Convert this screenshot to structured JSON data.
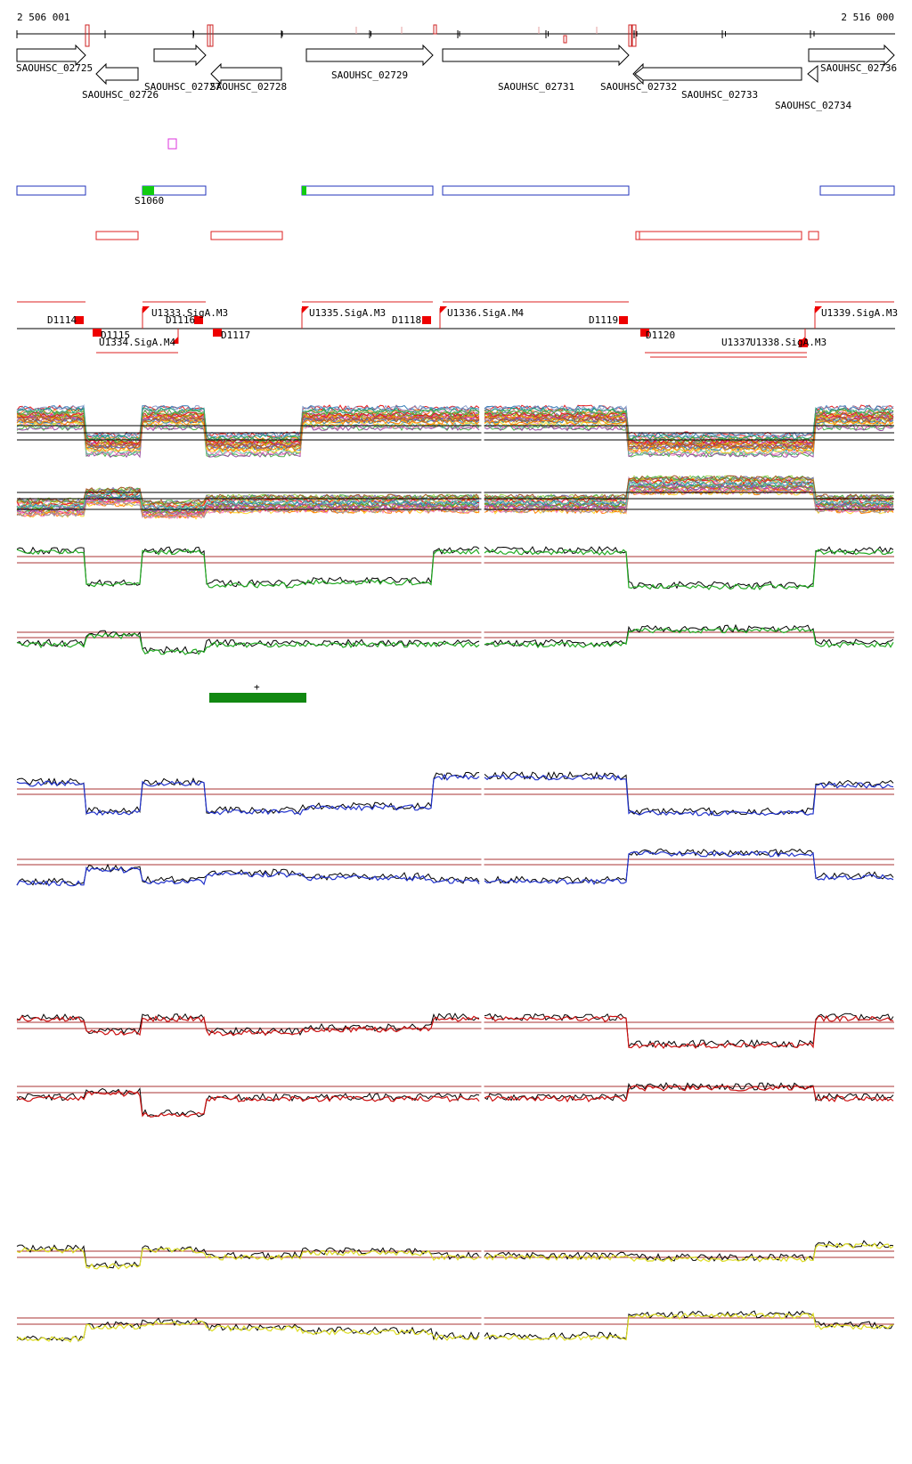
{
  "coords": {
    "start": "2 506 001",
    "end": "2 516 000"
  },
  "genes": [
    {
      "name": "SAOUHSC_02725",
      "strand": "+"
    },
    {
      "name": "SAOUHSC_02726",
      "strand": "-"
    },
    {
      "name": "SAOUHSC_02727",
      "strand": "+"
    },
    {
      "name": "SAOUHSC_02728",
      "strand": "-"
    },
    {
      "name": "SAOUHSC_02729",
      "strand": "+"
    },
    {
      "name": "SAOUHSC_02731",
      "strand": "+"
    },
    {
      "name": "SAOUHSC_02732",
      "strand": "-"
    },
    {
      "name": "SAOUHSC_02733",
      "strand": "-"
    },
    {
      "name": "SAOUHSC_02734",
      "strand": "-"
    },
    {
      "name": "SAOUHSC_02736",
      "strand": "+"
    }
  ],
  "segment_label": "S1060",
  "down_labels": [
    "D1114",
    "D1115",
    "D1116",
    "D1117",
    "D1118",
    "D1119",
    "D1120"
  ],
  "up_labels": [
    "U1333.SigA.M3",
    "U1334.SigA.M4",
    "U1335.SigA.M3",
    "U1336.SigA.M4",
    "U1337",
    "U1338.SigA.M3",
    "U1339.SigA.M3"
  ],
  "marker_symbol": "+",
  "colors": {
    "gene_outline": "#000000",
    "tick_mark": "#cc2222",
    "blue_segment": "#2233bb",
    "red_segment": "#dd2222",
    "green_fill": "#11cc11",
    "magenta_box": "#dd33dd",
    "dark_green_bar": "#118811",
    "condition_green": "#22aa22",
    "condition_blue": "#2233cc",
    "condition_red": "#cc1111",
    "condition_yellow": "#dddd22",
    "threshold_line": "#aa3333"
  }
}
